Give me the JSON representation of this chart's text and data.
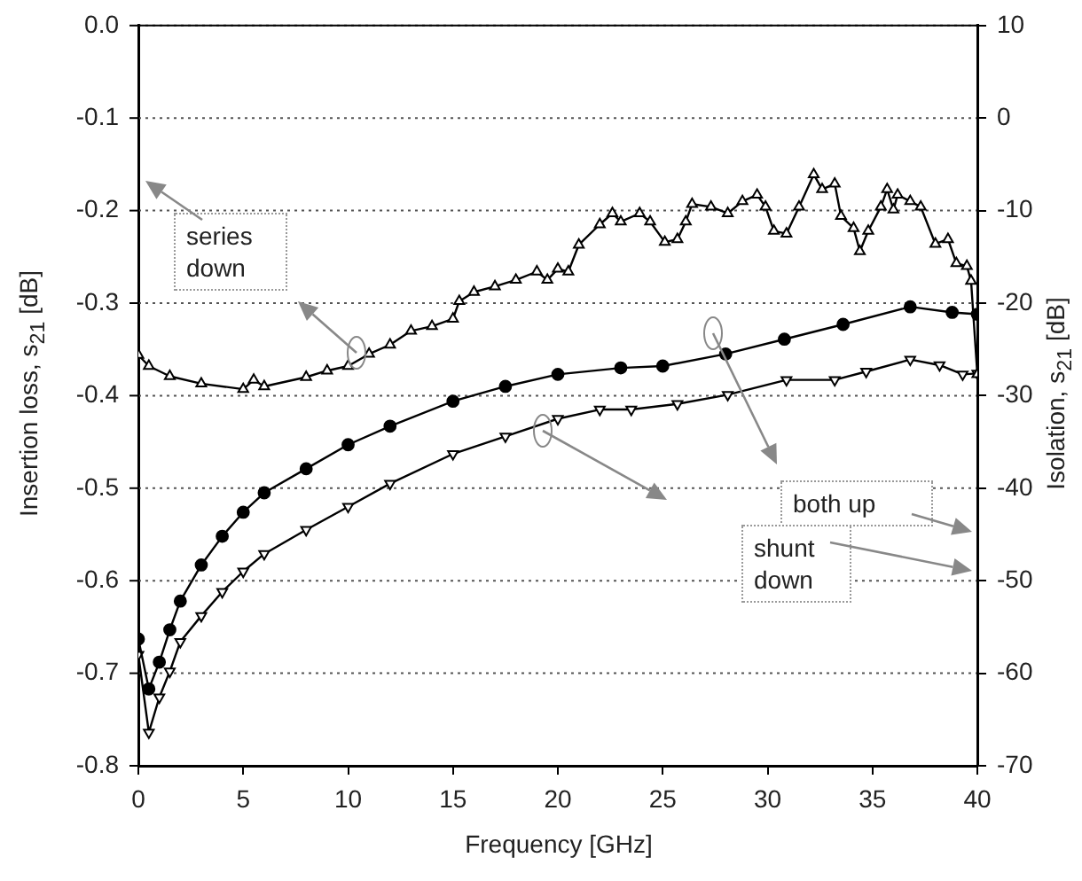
{
  "chart_data": {
    "type": "line",
    "xlabel": "Frequency [GHz]",
    "ylabel": "Insertion loss, s$_{21}$ [dB]",
    "y2label": "Isolation, s$_{21}$ [dB]",
    "xlim": [
      0,
      40
    ],
    "xticks": [
      0,
      5,
      10,
      15,
      20,
      25,
      30,
      35,
      40
    ],
    "ylim": [
      -0.8,
      0
    ],
    "yticks": [
      {
        "value": 0,
        "label": "0.0"
      },
      -0.1,
      -0.2,
      -0.3,
      -0.4,
      -0.5,
      -0.6,
      -0.7,
      -0.8
    ],
    "y2lim": [
      -70,
      10
    ],
    "y2ticks": [
      10,
      0,
      -10,
      -20,
      -30,
      -40,
      -50,
      -60,
      -70
    ],
    "grid": "y",
    "legend": false,
    "line_style": "solid",
    "annotations": [
      "series down",
      "both up",
      "shunt down"
    ],
    "series": [
      {
        "color": "#000000",
        "marker": "triangle",
        "axis": "y",
        "x": [
          0,
          0.5,
          1.5,
          3,
          5,
          5.5,
          6,
          8,
          9,
          10,
          11,
          12,
          13,
          14,
          15,
          15.3,
          16,
          17,
          18,
          19,
          19.5,
          20,
          20.5,
          21,
          22,
          22.6,
          23,
          23.9,
          24.4,
          25.1,
          25.7,
          26.1,
          26.4,
          27.3,
          28.1,
          28.8,
          29.5,
          29.9,
          30.3,
          30.9,
          31.5,
          32.2,
          32.6,
          33.2,
          33.5,
          34.1,
          34.4,
          34.8,
          35.4,
          35.7,
          36,
          36.2,
          36.8,
          37.3,
          38,
          38.6,
          39,
          39.5,
          39.7,
          40
        ],
        "values": [
          -0.356,
          -0.368,
          -0.379,
          -0.387,
          -0.393,
          -0.383,
          -0.39,
          -0.38,
          -0.373,
          -0.368,
          -0.355,
          -0.345,
          -0.33,
          -0.325,
          -0.317,
          -0.298,
          -0.288,
          -0.282,
          -0.275,
          -0.266,
          -0.275,
          -0.263,
          -0.266,
          -0.237,
          -0.215,
          -0.203,
          -0.212,
          -0.203,
          -0.212,
          -0.234,
          -0.231,
          -0.212,
          -0.193,
          -0.196,
          -0.203,
          -0.19,
          -0.183,
          -0.196,
          -0.222,
          -0.225,
          -0.196,
          -0.161,
          -0.177,
          -0.171,
          -0.206,
          -0.219,
          -0.244,
          -0.222,
          -0.196,
          -0.177,
          -0.199,
          -0.183,
          -0.19,
          -0.196,
          -0.236,
          -0.231,
          -0.257,
          -0.26,
          -0.276,
          -0.377
        ]
      },
      {
        "color": "#000000",
        "marker": "circle",
        "axis": "y2",
        "x": [
          0,
          0.5,
          1,
          1.5,
          2,
          3,
          4,
          5,
          6,
          8,
          10,
          12,
          15,
          17.5,
          20,
          23,
          25,
          28,
          30.8,
          33.6,
          36.8,
          38.8,
          40
        ],
        "values": [
          -56.3,
          -61.7,
          -58.8,
          -55.3,
          -52.2,
          -48.3,
          -45.2,
          -42.6,
          -40.5,
          -37.9,
          -35.3,
          -33.3,
          -30.6,
          -29,
          -27.7,
          -27,
          -26.8,
          -25.5,
          -23.9,
          -22.3,
          -20.4,
          -21,
          -21.2
        ]
      },
      {
        "color": "#000000",
        "marker": "triangle-down",
        "axis": "y2",
        "x": [
          0,
          0.5,
          1,
          1.5,
          2,
          3,
          4,
          5,
          6,
          8,
          10,
          12,
          15,
          17.5,
          20,
          22,
          23.5,
          25.7,
          28.1,
          30.9,
          33.2,
          34.7,
          36.8,
          38.2,
          39.3,
          40
        ],
        "values": [
          -58,
          -66.4,
          -62.6,
          -59.8,
          -56.6,
          -53.8,
          -51.2,
          -49,
          -47.1,
          -44.5,
          -42,
          -39.5,
          -36.3,
          -34.4,
          -32.5,
          -31.5,
          -31.5,
          -30.9,
          -29.9,
          -28.3,
          -28.3,
          -27.4,
          -26.1,
          -26.7,
          -27.7,
          -27.6
        ]
      }
    ]
  }
}
